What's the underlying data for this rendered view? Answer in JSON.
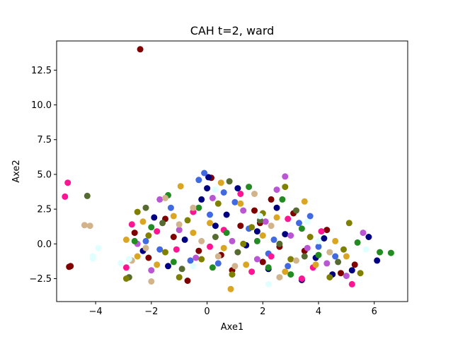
{
  "chart_data": {
    "type": "scatter",
    "title": "CAH t=2, ward",
    "xlabel": "Axe1",
    "ylabel": "Axe2",
    "xlim": [
      -5.4,
      7.2
    ],
    "ylim": [
      -4.15,
      14.6
    ],
    "xticks": [
      -4,
      -2,
      0,
      2,
      4,
      6
    ],
    "xtick_labels": [
      "−4",
      "−2",
      "0",
      "2",
      "4",
      "6"
    ],
    "yticks": [
      -2.5,
      0.0,
      2.5,
      5.0,
      7.5,
      10.0,
      12.5
    ],
    "ytick_labels": [
      "−2.5",
      "0.0",
      "2.5",
      "5.0",
      "7.5",
      "10.0",
      "12.5"
    ],
    "grid": false,
    "legend": "none",
    "series": [
      {
        "color": "#800000",
        "points": [
          [
            -2.4,
            14.0
          ],
          [
            -4.95,
            -1.65
          ],
          [
            -4.9,
            -1.6
          ],
          [
            -0.7,
            -2.65
          ],
          [
            0.15,
            4.75
          ],
          [
            1.9,
            1.5
          ],
          [
            2.3,
            3.2
          ],
          [
            1.2,
            1.3
          ],
          [
            -1.2,
            0.5
          ],
          [
            3.5,
            -0.5
          ],
          [
            0.5,
            -0.8
          ],
          [
            -2.1,
            -1.0
          ],
          [
            2.6,
            -0.2
          ],
          [
            4.3,
            1.0
          ],
          [
            -1.5,
            1.8
          ],
          [
            1.7,
            2.4
          ],
          [
            -0.3,
            -0.5
          ],
          [
            3.1,
            2.2
          ],
          [
            5.3,
            -1.5
          ],
          [
            0.9,
            -1.9
          ],
          [
            -2.6,
            0.8
          ],
          [
            2.0,
            -1.3
          ],
          [
            4.8,
            -2.1
          ]
        ]
      },
      {
        "color": "#000080",
        "points": [
          [
            0.05,
            4.8
          ],
          [
            0.0,
            4.0
          ],
          [
            -0.2,
            3.2
          ],
          [
            1.1,
            4.0
          ],
          [
            5.8,
            0.5
          ],
          [
            2.8,
            0.7
          ],
          [
            -1.9,
            1.9
          ],
          [
            4.5,
            -2.2
          ],
          [
            2.2,
            -1.8
          ],
          [
            0.7,
            2.1
          ],
          [
            -0.8,
            0.3
          ],
          [
            3.4,
            -2.6
          ],
          [
            1.4,
            -0.1
          ],
          [
            4.2,
            0.4
          ],
          [
            -1.4,
            -1.6
          ],
          [
            5.2,
            -1.9
          ],
          [
            2.5,
            2.6
          ],
          [
            0.3,
            1.3
          ],
          [
            3.9,
            -1.0
          ],
          [
            -2.3,
            -0.5
          ],
          [
            1.8,
            0.9
          ],
          [
            6.1,
            -1.2
          ]
        ]
      },
      {
        "color": "#4169E1",
        "points": [
          [
            -0.1,
            5.1
          ],
          [
            -0.3,
            4.6
          ],
          [
            0.6,
            3.7
          ],
          [
            3.3,
            1.5
          ],
          [
            -1.3,
            2.6
          ],
          [
            2.2,
            -0.7
          ],
          [
            0.1,
            2.1
          ],
          [
            4.0,
            -0.2
          ],
          [
            -2.2,
            0.2
          ],
          [
            1.5,
            1.1
          ],
          [
            2.9,
            -1.6
          ],
          [
            -0.6,
            -1.2
          ],
          [
            1.0,
            3.0
          ],
          [
            4.6,
            -0.9
          ],
          [
            3.7,
            2.0
          ],
          [
            -1.7,
            -0.4
          ],
          [
            0.4,
            -1.4
          ],
          [
            2.4,
            0.3
          ]
        ]
      },
      {
        "color": "#BA55D3",
        "points": [
          [
            2.8,
            4.85
          ],
          [
            2.5,
            3.9
          ],
          [
            5.6,
            0.8
          ],
          [
            -1.7,
            3.2
          ],
          [
            0.9,
            0.2
          ],
          [
            1.3,
            2.4
          ],
          [
            3.6,
            -0.3
          ],
          [
            -0.4,
            -1.0
          ],
          [
            2.1,
            1.6
          ],
          [
            4.3,
            -1.4
          ],
          [
            -2.0,
            -1.9
          ],
          [
            0.2,
            3.3
          ],
          [
            1.8,
            -1.1
          ],
          [
            3.0,
            0.6
          ],
          [
            -1.0,
            1.0
          ],
          [
            5.0,
            -2.3
          ],
          [
            -2.5,
            0.0
          ]
        ]
      },
      {
        "color": "#FF1493",
        "points": [
          [
            -5.0,
            4.4
          ],
          [
            -5.1,
            3.4
          ],
          [
            1.2,
            3.6
          ],
          [
            -2.9,
            -1.7
          ],
          [
            3.4,
            -2.5
          ],
          [
            5.2,
            -2.9
          ],
          [
            0.6,
            1.0
          ],
          [
            -1.1,
            -0.4
          ],
          [
            2.3,
            -0.9
          ],
          [
            4.1,
            0.9
          ],
          [
            -0.5,
            2.3
          ],
          [
            1.6,
            -2.0
          ],
          [
            2.9,
            1.8
          ],
          [
            -1.8,
            0.9
          ],
          [
            0.1,
            -0.2
          ],
          [
            3.8,
            -1.7
          ],
          [
            -2.7,
            1.4
          ]
        ]
      },
      {
        "color": "#556B2F",
        "points": [
          [
            -4.3,
            3.45
          ],
          [
            -2.2,
            2.6
          ],
          [
            0.8,
            4.5
          ],
          [
            1.9,
            1.7
          ],
          [
            -2.8,
            -2.4
          ],
          [
            3.5,
            -0.9
          ],
          [
            4.7,
            -1.3
          ],
          [
            -0.9,
            -1.8
          ],
          [
            0.3,
            0.5
          ],
          [
            2.6,
            0.0
          ],
          [
            -1.6,
            1.5
          ],
          [
            1.1,
            -0.6
          ],
          [
            3.2,
            2.4
          ]
        ]
      },
      {
        "color": "#808000",
        "points": [
          [
            -2.9,
            -2.5
          ],
          [
            -1.0,
            -2.4
          ],
          [
            5.1,
            1.5
          ],
          [
            2.8,
            4.1
          ],
          [
            -2.5,
            2.3
          ],
          [
            0.4,
            2.9
          ],
          [
            3.0,
            -1.1
          ],
          [
            -1.5,
            -0.6
          ],
          [
            1.6,
            1.2
          ],
          [
            4.4,
            -2.4
          ],
          [
            -0.2,
            -1.1
          ],
          [
            2.0,
            2.2
          ],
          [
            -2.1,
            0.6
          ],
          [
            0.9,
            -2.2
          ],
          [
            3.7,
            0.5
          ],
          [
            5.5,
            -2.1
          ],
          [
            1.3,
            0.0
          ],
          [
            -0.7,
            1.7
          ],
          [
            4.9,
            -0.4
          ]
        ]
      },
      {
        "color": "#228B22",
        "points": [
          [
            6.6,
            -0.65
          ],
          [
            6.2,
            -0.6
          ],
          [
            -1.4,
            3.5
          ],
          [
            2.7,
            3.2
          ],
          [
            1.5,
            4.1
          ],
          [
            -2.6,
            0.2
          ],
          [
            4.0,
            -0.8
          ],
          [
            0.7,
            0.8
          ],
          [
            -0.3,
            2.6
          ],
          [
            2.2,
            -1.7
          ],
          [
            3.4,
            1.1
          ],
          [
            -1.2,
            -1.3
          ],
          [
            5.4,
            0.1
          ],
          [
            1.8,
            0.2
          ],
          [
            -2.0,
            1.2
          ],
          [
            0.2,
            -1.7
          ],
          [
            3.0,
            -2.2
          ]
        ]
      },
      {
        "color": "#DAA520",
        "points": [
          [
            0.85,
            -3.25
          ],
          [
            -0.95,
            4.15
          ],
          [
            0.5,
            4.4
          ],
          [
            -2.5,
            -0.9
          ],
          [
            2.5,
            1.9
          ],
          [
            3.5,
            3.05
          ],
          [
            -1.8,
            -1.5
          ],
          [
            4.6,
            0.2
          ],
          [
            0.1,
            1.5
          ],
          [
            1.4,
            -1.5
          ],
          [
            -1.2,
            2.0
          ],
          [
            2.8,
            -2.0
          ],
          [
            -2.9,
            0.3
          ],
          [
            3.9,
            -1.5
          ],
          [
            0.6,
            -0.3
          ],
          [
            -0.5,
            0.8
          ],
          [
            2.0,
            0.6
          ],
          [
            5.0,
            -0.9
          ],
          [
            -2.3,
            1.6
          ],
          [
            1.2,
            2.9
          ]
        ]
      },
      {
        "color": "#D2B48C",
        "points": [
          [
            -4.4,
            1.35
          ],
          [
            -4.2,
            1.3
          ],
          [
            -1.5,
            3.3
          ],
          [
            -0.5,
            2.6
          ],
          [
            -2.0,
            -2.7
          ],
          [
            1.7,
            3.6
          ],
          [
            -2.2,
            -0.3
          ],
          [
            0.4,
            -0.9
          ],
          [
            3.2,
            -1.2
          ],
          [
            -1.0,
            1.4
          ],
          [
            2.3,
            1.3
          ],
          [
            1.0,
            -1.6
          ],
          [
            4.4,
            -0.6
          ],
          [
            -0.2,
            0.2
          ],
          [
            2.6,
            -2.4
          ],
          [
            -2.7,
            -1.2
          ]
        ]
      },
      {
        "color": "#E0FFFF",
        "points": [
          [
            -3.9,
            -0.3
          ],
          [
            -4.1,
            -0.9
          ],
          [
            -4.1,
            -1.05
          ],
          [
            -2.8,
            -1.1
          ],
          [
            -3.1,
            -1.4
          ],
          [
            2.2,
            -2.9
          ],
          [
            4.0,
            0.2
          ],
          [
            5.7,
            -0.4
          ],
          [
            -0.5,
            -1.6
          ],
          [
            0.3,
            3.9
          ],
          [
            1.9,
            2.0
          ],
          [
            3.6,
            1.6
          ]
        ]
      }
    ]
  }
}
